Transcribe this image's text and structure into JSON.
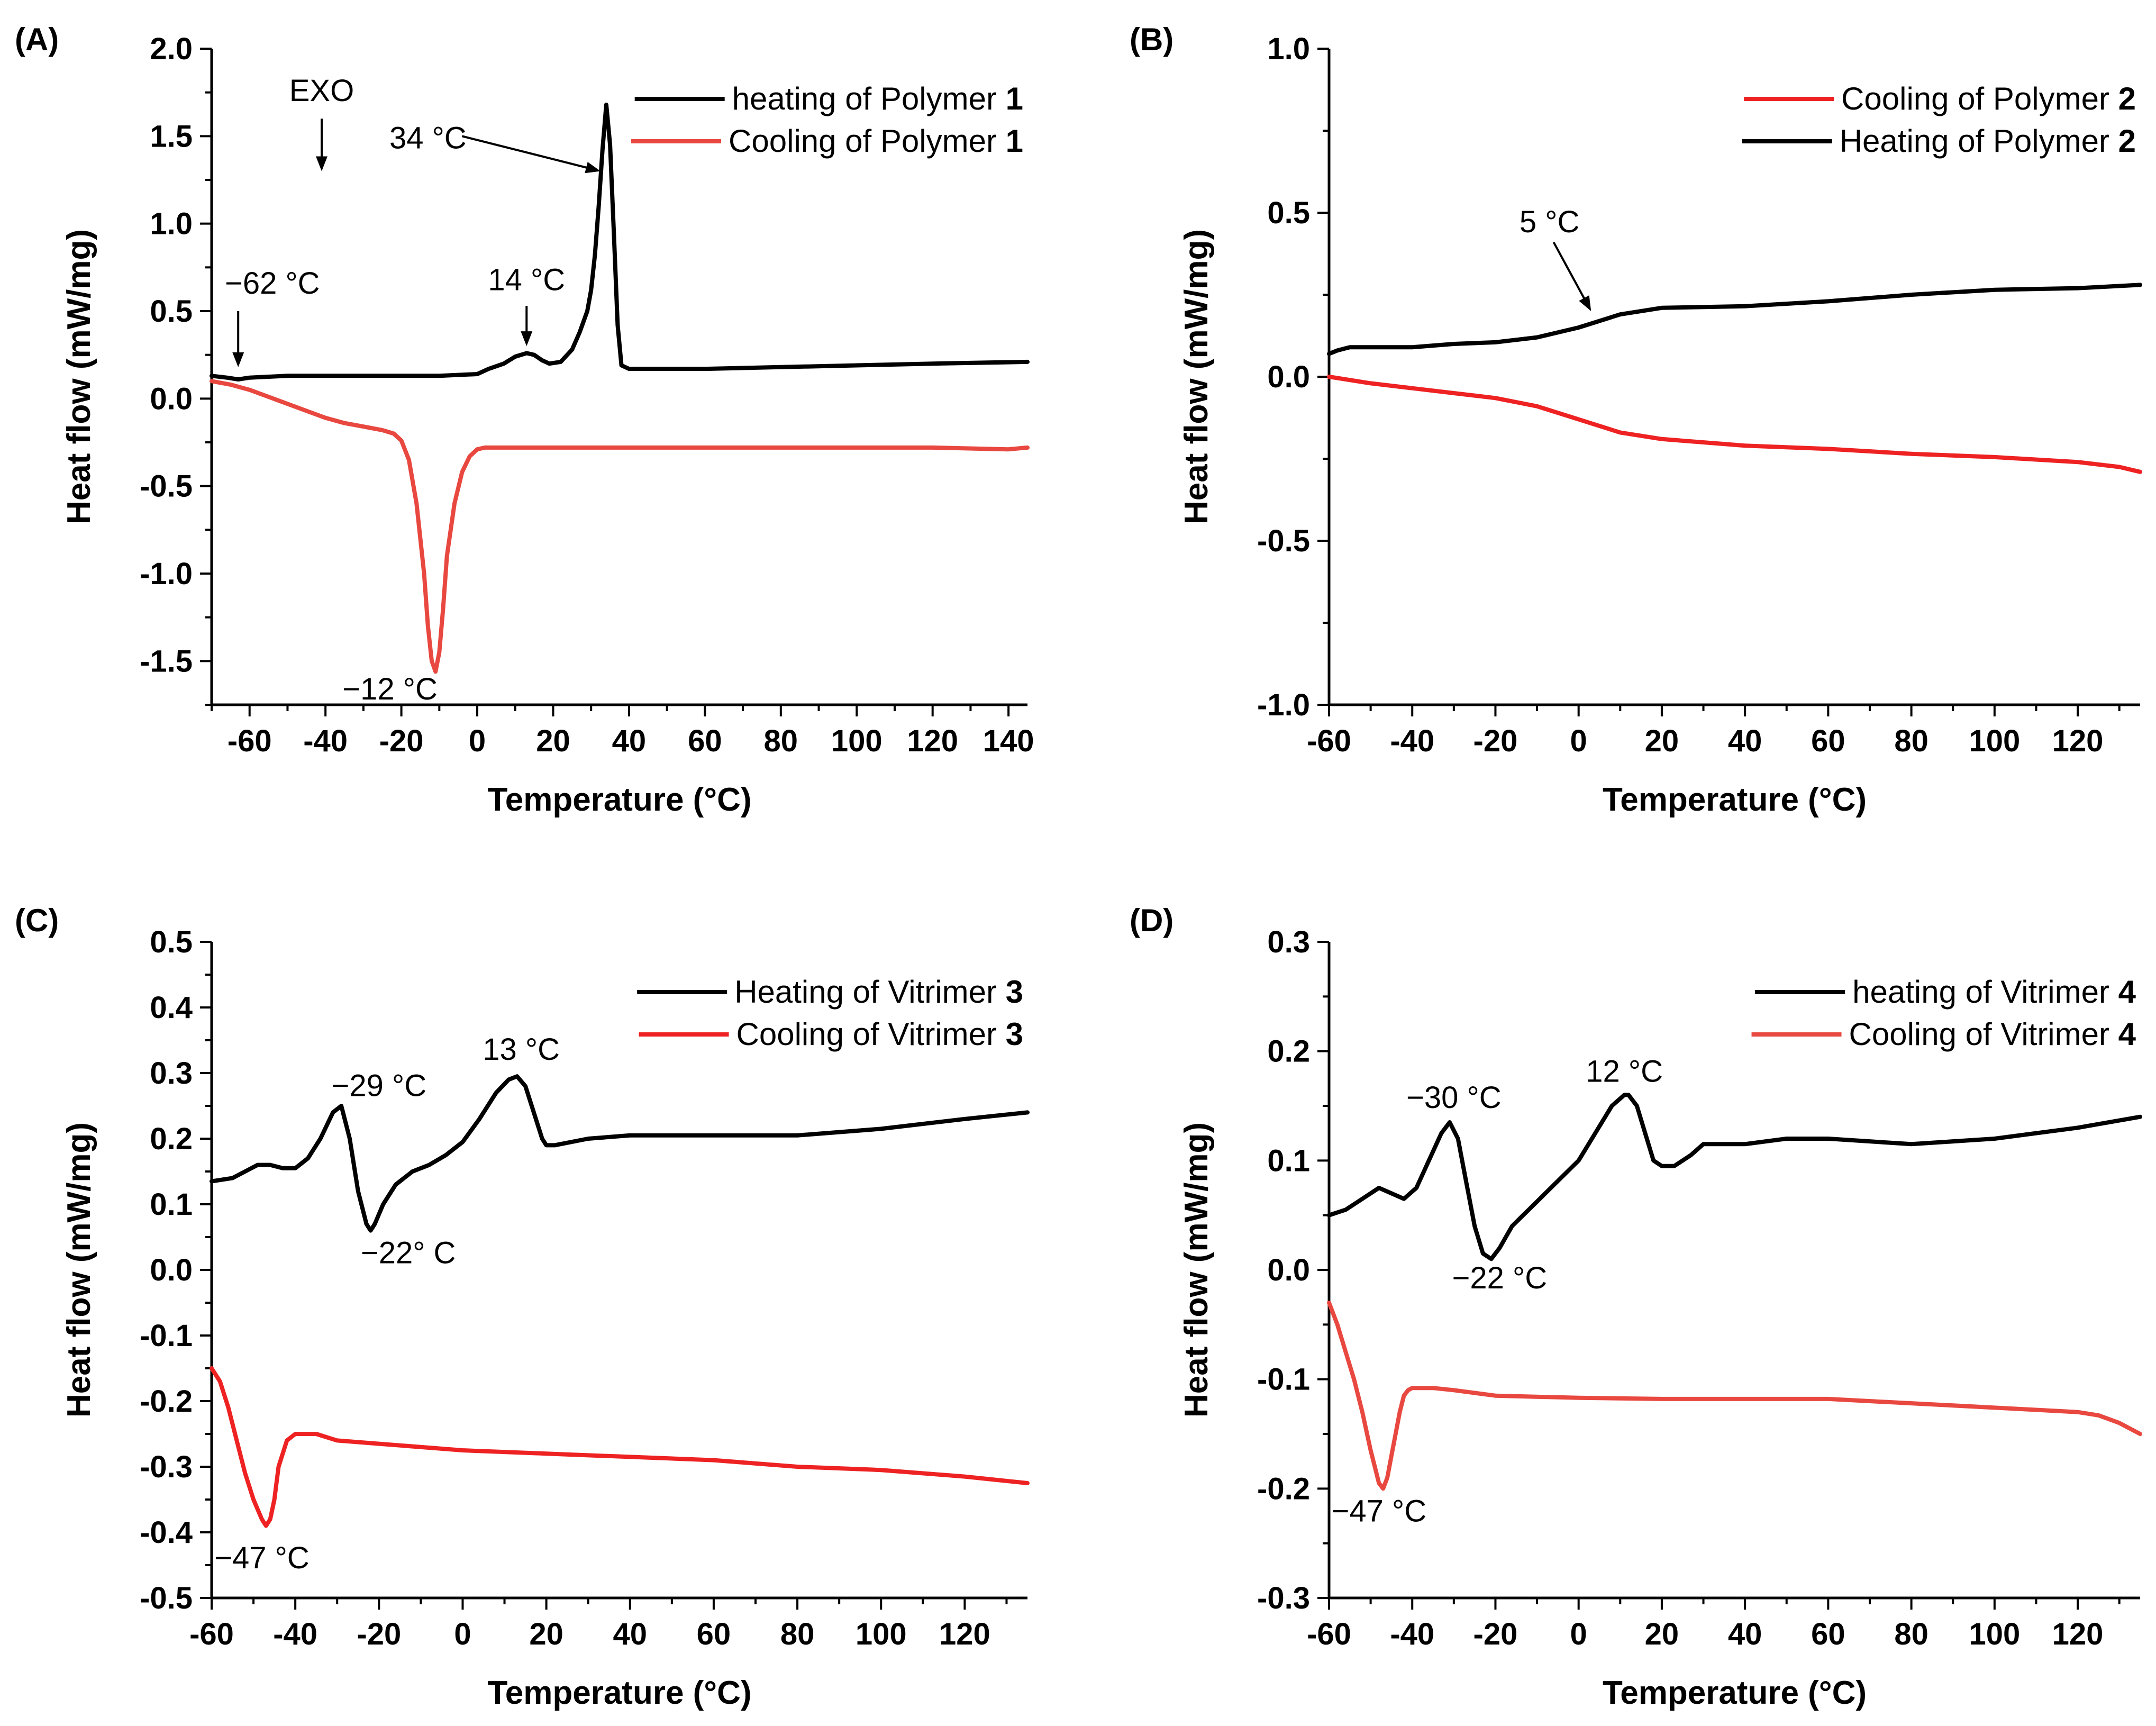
{
  "chart_data": [
    {
      "type": "line",
      "panel_label": "(A)",
      "xlabel": "Temperature (°C)",
      "ylabel": "Heat flow (mW/mg)",
      "xlim": [
        -70,
        145
      ],
      "ylim": [
        -1.75,
        2.0
      ],
      "xticks": [
        -60,
        -40,
        -20,
        0,
        20,
        40,
        60,
        80,
        100,
        120,
        140
      ],
      "yticks": [
        -1.5,
        -1.0,
        -0.5,
        0.0,
        0.5,
        1.0,
        1.5,
        2.0
      ],
      "tick_decimals": 1,
      "legend": [
        {
          "label": "heating of Polymer ",
          "bold": "1"
        },
        {
          "label": "Cooling of Polymer ",
          "bold": "1"
        }
      ],
      "legend_placement": "top-right",
      "series": [
        {
          "name": "heating of Polymer 1",
          "color": "#000000",
          "x": [
            -70,
            -66,
            -63,
            -60,
            -50,
            -40,
            -30,
            -20,
            -10,
            0,
            3,
            7,
            10,
            13,
            15,
            17,
            19,
            22,
            25,
            27,
            29,
            30,
            31,
            32,
            33,
            34,
            35,
            36,
            37,
            38,
            40,
            50,
            60,
            80,
            100,
            120,
            145
          ],
          "y": [
            0.13,
            0.12,
            0.11,
            0.12,
            0.13,
            0.13,
            0.13,
            0.13,
            0.13,
            0.14,
            0.17,
            0.2,
            0.24,
            0.26,
            0.25,
            0.22,
            0.2,
            0.21,
            0.28,
            0.38,
            0.5,
            0.62,
            0.82,
            1.1,
            1.42,
            1.68,
            1.45,
            0.95,
            0.42,
            0.19,
            0.17,
            0.17,
            0.17,
            0.18,
            0.19,
            0.2,
            0.21
          ]
        },
        {
          "name": "Cooling of Polymer 1",
          "color": "#e8483f",
          "x": [
            -70,
            -65,
            -60,
            -55,
            -50,
            -45,
            -40,
            -35,
            -30,
            -25,
            -22,
            -20,
            -18,
            -16,
            -14,
            -13,
            -12,
            -11,
            -10,
            -9,
            -8,
            -6,
            -4,
            -2,
            0,
            2,
            5,
            10,
            20,
            40,
            60,
            80,
            100,
            120,
            140,
            145
          ],
          "y": [
            0.1,
            0.08,
            0.05,
            0.01,
            -0.03,
            -0.07,
            -0.11,
            -0.14,
            -0.16,
            -0.18,
            -0.2,
            -0.24,
            -0.35,
            -0.6,
            -1.0,
            -1.3,
            -1.5,
            -1.56,
            -1.45,
            -1.2,
            -0.9,
            -0.6,
            -0.42,
            -0.33,
            -0.29,
            -0.28,
            -0.28,
            -0.28,
            -0.28,
            -0.28,
            -0.28,
            -0.28,
            -0.28,
            -0.28,
            -0.29,
            -0.28
          ]
        }
      ],
      "annotations": [
        {
          "text": "EXO",
          "x": -41,
          "y": 1.7,
          "anchor": "middle",
          "arrow": {
            "from": [
              -41,
              1.6
            ],
            "to": [
              -41,
              1.3
            ]
          }
        },
        {
          "text": "34 °C",
          "x": -13,
          "y": 1.43,
          "anchor": "middle",
          "arrow": {
            "from": [
              -4,
              1.5
            ],
            "to": [
              32.5,
              1.3
            ]
          }
        },
        {
          "text": "14 °C",
          "x": 13,
          "y": 0.62,
          "anchor": "middle",
          "arrow": {
            "from": [
              13,
              0.53
            ],
            "to": [
              13,
              0.3
            ]
          }
        },
        {
          "text": "−62 °C",
          "x": -54,
          "y": 0.6,
          "anchor": "middle",
          "arrow": {
            "from": [
              -63,
              0.5
            ],
            "to": [
              -63,
              0.18
            ]
          }
        },
        {
          "text": "−12 °C",
          "x": -23,
          "y": -1.72,
          "anchor": "middle"
        }
      ]
    },
    {
      "type": "line",
      "panel_label": "(B)",
      "xlabel": "Temperature (°C)",
      "ylabel": "Heat flow (mW/mg)",
      "xlim": [
        -60,
        135
      ],
      "ylim": [
        -1.0,
        1.0
      ],
      "xticks": [
        -60,
        -40,
        -20,
        0,
        20,
        40,
        60,
        80,
        100,
        120
      ],
      "yticks": [
        -1.0,
        -0.5,
        0.0,
        0.5,
        1.0
      ],
      "tick_decimals": 1,
      "legend": [
        {
          "label": "Cooling of Polymer ",
          "bold": "2"
        },
        {
          "label": "Heating of Polymer ",
          "bold": "2"
        }
      ],
      "legend_placement": "top-right",
      "series": [
        {
          "name": "Cooling of Polymer 2",
          "color": "#ee2222",
          "x": [
            -60,
            -50,
            -40,
            -30,
            -20,
            -10,
            0,
            10,
            20,
            40,
            60,
            80,
            100,
            120,
            130,
            135
          ],
          "y": [
            0.0,
            -0.02,
            -0.035,
            -0.05,
            -0.065,
            -0.09,
            -0.13,
            -0.17,
            -0.19,
            -0.21,
            -0.22,
            -0.235,
            -0.245,
            -0.26,
            -0.275,
            -0.29
          ]
        },
        {
          "name": "Heating of Polymer 2",
          "color": "#000000",
          "x": [
            -60,
            -58,
            -55,
            -50,
            -40,
            -30,
            -20,
            -10,
            0,
            10,
            20,
            40,
            60,
            80,
            100,
            120,
            135
          ],
          "y": [
            0.07,
            0.08,
            0.09,
            0.09,
            0.09,
            0.1,
            0.105,
            0.12,
            0.15,
            0.19,
            0.21,
            0.215,
            0.23,
            0.25,
            0.265,
            0.27,
            0.28
          ]
        }
      ],
      "annotations": [
        {
          "text": "5 °C",
          "x": -7,
          "y": 0.44,
          "anchor": "middle",
          "arrow": {
            "from": [
              -6,
              0.41
            ],
            "to": [
              3,
              0.2
            ]
          }
        }
      ]
    },
    {
      "type": "line",
      "panel_label": "(C)",
      "xlabel": "Temperature (°C)",
      "ylabel": "Heat flow (mW/mg)",
      "xlim": [
        -60,
        135
      ],
      "ylim": [
        -0.5,
        0.5
      ],
      "xticks": [
        -60,
        -40,
        -20,
        0,
        20,
        40,
        60,
        80,
        100,
        120
      ],
      "yticks": [
        -0.5,
        -0.4,
        -0.3,
        -0.2,
        -0.1,
        0.0,
        0.1,
        0.2,
        0.3,
        0.4,
        0.5
      ],
      "tick_decimals": 1,
      "legend": [
        {
          "label": "Heating of Vitrimer ",
          "bold": "3"
        },
        {
          "label": "Cooling of Vitrimer ",
          "bold": "3"
        }
      ],
      "legend_placement": "top-right",
      "series": [
        {
          "name": "Heating of Vitrimer 3",
          "color": "#000000",
          "x": [
            -60,
            -55,
            -52,
            -49,
            -46,
            -43,
            -40,
            -37,
            -34,
            -31,
            -29,
            -27,
            -25,
            -23,
            -22,
            -21,
            -19,
            -16,
            -12,
            -8,
            -4,
            0,
            4,
            8,
            11,
            13,
            15,
            17,
            19,
            20,
            22,
            30,
            40,
            50,
            60,
            80,
            100,
            120,
            135
          ],
          "y": [
            0.135,
            0.14,
            0.15,
            0.16,
            0.16,
            0.155,
            0.155,
            0.17,
            0.2,
            0.24,
            0.25,
            0.2,
            0.12,
            0.07,
            0.06,
            0.07,
            0.1,
            0.13,
            0.15,
            0.16,
            0.175,
            0.195,
            0.23,
            0.27,
            0.29,
            0.295,
            0.28,
            0.24,
            0.2,
            0.19,
            0.19,
            0.2,
            0.205,
            0.205,
            0.205,
            0.205,
            0.215,
            0.23,
            0.24
          ]
        },
        {
          "name": "Cooling of Vitrimer 3",
          "color": "#ee2222",
          "x": [
            -60,
            -58,
            -56,
            -54,
            -52,
            -50,
            -48,
            -47,
            -46,
            -45,
            -44,
            -42,
            -40,
            -38,
            -35,
            -30,
            -20,
            0,
            20,
            40,
            60,
            80,
            100,
            120,
            135
          ],
          "y": [
            -0.15,
            -0.17,
            -0.21,
            -0.26,
            -0.31,
            -0.35,
            -0.38,
            -0.39,
            -0.38,
            -0.35,
            -0.3,
            -0.26,
            -0.25,
            -0.25,
            -0.25,
            -0.26,
            -0.265,
            -0.275,
            -0.28,
            -0.285,
            -0.29,
            -0.3,
            -0.305,
            -0.315,
            -0.325
          ]
        }
      ],
      "annotations": [
        {
          "text": "−29 °C",
          "x": -20,
          "y": 0.265,
          "anchor": "middle"
        },
        {
          "text": "13 °C",
          "x": 14,
          "y": 0.32,
          "anchor": "middle"
        },
        {
          "text": "−22° C",
          "x": -13,
          "y": 0.01,
          "anchor": "middle"
        },
        {
          "text": "−47 °C",
          "x": -48,
          "y": -0.455,
          "anchor": "middle"
        }
      ]
    },
    {
      "type": "line",
      "panel_label": "(D)",
      "xlabel": "Temperature (°C)",
      "ylabel": "Heat flow (mW/mg)",
      "xlim": [
        -60,
        135
      ],
      "ylim": [
        -0.3,
        0.3
      ],
      "xticks": [
        -60,
        -40,
        -20,
        0,
        20,
        40,
        60,
        80,
        100,
        120
      ],
      "yticks": [
        -0.3,
        -0.2,
        -0.1,
        0.0,
        0.1,
        0.2,
        0.3
      ],
      "tick_decimals": 1,
      "legend": [
        {
          "label": "heating of Vitrimer ",
          "bold": "4"
        },
        {
          "label": "Cooling of Vitrimer ",
          "bold": "4"
        }
      ],
      "legend_placement": "top-right",
      "series": [
        {
          "name": "heating of Vitrimer 4",
          "color": "#000000",
          "x": [
            -60,
            -56,
            -52,
            -48,
            -45,
            -42,
            -39,
            -36,
            -33,
            -31,
            -29,
            -27,
            -25,
            -23,
            -21,
            -19,
            -16,
            -12,
            -8,
            -4,
            0,
            4,
            8,
            11,
            12,
            14,
            16,
            18,
            20,
            23,
            27,
            30,
            35,
            40,
            50,
            60,
            80,
            100,
            120,
            135
          ],
          "y": [
            0.05,
            0.055,
            0.065,
            0.075,
            0.07,
            0.065,
            0.075,
            0.1,
            0.125,
            0.135,
            0.12,
            0.08,
            0.04,
            0.015,
            0.01,
            0.02,
            0.04,
            0.055,
            0.07,
            0.085,
            0.1,
            0.125,
            0.15,
            0.16,
            0.16,
            0.15,
            0.125,
            0.1,
            0.095,
            0.095,
            0.105,
            0.115,
            0.115,
            0.115,
            0.12,
            0.12,
            0.115,
            0.12,
            0.13,
            0.14
          ]
        },
        {
          "name": "Cooling of Vitrimer 4",
          "color": "#e8483f",
          "x": [
            -60,
            -58,
            -56,
            -54,
            -52,
            -50,
            -49,
            -48,
            -47,
            -46,
            -45,
            -44,
            -43,
            -42,
            -41,
            -40,
            -38,
            -35,
            -30,
            -20,
            0,
            20,
            40,
            60,
            80,
            100,
            110,
            120,
            125,
            130,
            135
          ],
          "y": [
            -0.03,
            -0.05,
            -0.075,
            -0.1,
            -0.13,
            -0.165,
            -0.18,
            -0.195,
            -0.2,
            -0.19,
            -0.17,
            -0.15,
            -0.13,
            -0.115,
            -0.11,
            -0.108,
            -0.108,
            -0.108,
            -0.11,
            -0.115,
            -0.117,
            -0.118,
            -0.118,
            -0.118,
            -0.122,
            -0.126,
            -0.128,
            -0.13,
            -0.133,
            -0.14,
            -0.15
          ]
        }
      ],
      "annotations": [
        {
          "text": "−30 °C",
          "x": -30,
          "y": 0.148,
          "anchor": "middle"
        },
        {
          "text": "12 °C",
          "x": 11,
          "y": 0.172,
          "anchor": "middle"
        },
        {
          "text": "−22 °C",
          "x": -19,
          "y": -0.017,
          "anchor": "middle"
        },
        {
          "text": "−47 °C",
          "x": -48,
          "y": -0.23,
          "anchor": "middle"
        }
      ]
    }
  ]
}
